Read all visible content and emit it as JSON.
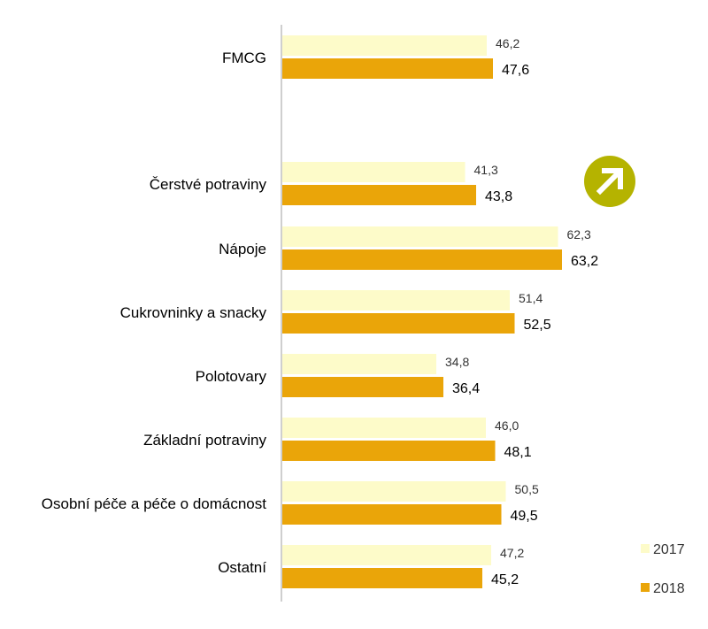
{
  "chart_data": {
    "type": "bar",
    "orientation": "horizontal",
    "categories": [
      "FMCG",
      "Čerstvé potraviny",
      "Nápoje",
      "Cukrovninky a snacky",
      "Polotovary",
      "Základní potraviny",
      "Osobní péče a péče o domácnost",
      "Ostatní"
    ],
    "series": [
      {
        "name": "2017",
        "color": "#fdfbc9",
        "values": [
          46.2,
          41.3,
          62.3,
          51.4,
          34.8,
          46.0,
          50.5,
          47.2
        ],
        "labels": [
          "46,2",
          "41,3",
          "62,3",
          "51,4",
          "34,8",
          "46,0",
          "50,5",
          "47,2"
        ]
      },
      {
        "name": "2018",
        "color": "#eaa509",
        "values": [
          47.6,
          43.8,
          63.2,
          52.5,
          36.4,
          48.1,
          49.5,
          45.2
        ],
        "labels": [
          "47,6",
          "43,8",
          "63,2",
          "52,5",
          "36,4",
          "48,1",
          "49,5",
          "45,2"
        ]
      }
    ],
    "xlim": [
      0,
      100
    ],
    "grid": false,
    "legend": {
      "position": "bottom-right",
      "entries": [
        "2017",
        "2018"
      ]
    },
    "annotation_icon": "arrow-up-right-icon",
    "annotation_color": "#b5b300"
  }
}
